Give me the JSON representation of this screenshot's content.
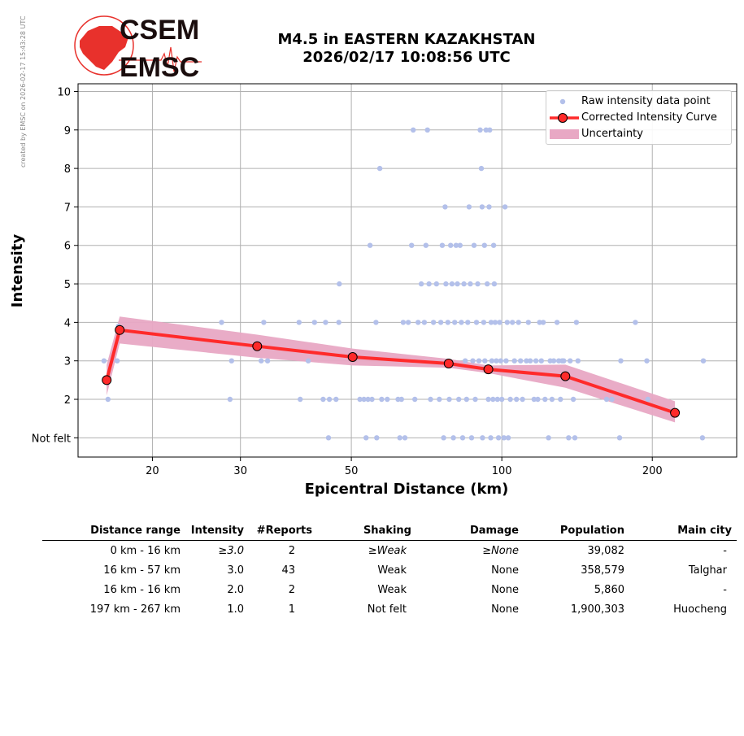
{
  "side_credit": "created by EMSC on 2026-02-17 15:43:28 UTC",
  "logo": {
    "text_top": "CSEM",
    "text_bottom": "EMSC",
    "color_red": "#e8312c",
    "color_dark": "#1a0d0d"
  },
  "title": {
    "line1": "M4.5 in EASTERN KAZAKHSTAN",
    "line2": "2026/02/17 10:08:56 UTC"
  },
  "legend": {
    "raw": "Raw intensity data point",
    "curve": "Corrected Intensity Curve",
    "uncertainty": "Uncertainty"
  },
  "colors": {
    "raw": "#b3c0ea",
    "curve": "#ff2a2a",
    "uncertainty": "#e8a8c4",
    "grid": "#b0b0b0"
  },
  "chart_data": {
    "type": "scatter",
    "xlabel": "Epicentral Distance (km)",
    "ylabel": "Intensity",
    "xscale": "log",
    "xlim": [
      14.2,
      295
    ],
    "ylim": [
      0.5,
      10.2
    ],
    "xticks": [
      20,
      30,
      50,
      100,
      200
    ],
    "yticks": [
      1,
      2,
      3,
      4,
      5,
      6,
      7,
      8,
      9,
      10
    ],
    "ytick_labels": [
      "Not felt",
      "2",
      "3",
      "4",
      "5",
      "6",
      "7",
      "8",
      "9",
      "10"
    ],
    "grid": true,
    "legend_position": "top-right",
    "series": [
      {
        "name": "Raw intensity data point",
        "points": [
          [
            16,
            3
          ],
          [
            16.3,
            2
          ],
          [
            17,
            3
          ],
          [
            17.1,
            3.9
          ],
          [
            27.5,
            4
          ],
          [
            28.8,
            3
          ],
          [
            28.6,
            2
          ],
          [
            33.4,
            4
          ],
          [
            33,
            3
          ],
          [
            34,
            3
          ],
          [
            39.3,
            4
          ],
          [
            39.5,
            2
          ],
          [
            41,
            3
          ],
          [
            42.2,
            4
          ],
          [
            44.4,
            4
          ],
          [
            43.9,
            2
          ],
          [
            45.2,
            2
          ],
          [
            45,
            1
          ],
          [
            46.6,
            2
          ],
          [
            47.3,
            5
          ],
          [
            47.2,
            4
          ],
          [
            52,
            2
          ],
          [
            53,
            2
          ],
          [
            53.5,
            1
          ],
          [
            54,
            2
          ],
          [
            54.5,
            6
          ],
          [
            55,
            2
          ],
          [
            56,
            4
          ],
          [
            56.2,
            1
          ],
          [
            57,
            8
          ],
          [
            57.5,
            2
          ],
          [
            59,
            2
          ],
          [
            62,
            2
          ],
          [
            62.5,
            1
          ],
          [
            63,
            2
          ],
          [
            63.5,
            4
          ],
          [
            64,
            1
          ],
          [
            65,
            4
          ],
          [
            66,
            6
          ],
          [
            66.5,
            9
          ],
          [
            67,
            2
          ],
          [
            68,
            4
          ],
          [
            69,
            5
          ],
          [
            70,
            4
          ],
          [
            70.5,
            6
          ],
          [
            71,
            9
          ],
          [
            71.5,
            5
          ],
          [
            72,
            2
          ],
          [
            73,
            4
          ],
          [
            74,
            5
          ],
          [
            75,
            2
          ],
          [
            75.5,
            4
          ],
          [
            76,
            6
          ],
          [
            76.5,
            1
          ],
          [
            77,
            7
          ],
          [
            77.3,
            5
          ],
          [
            78,
            4
          ],
          [
            78.5,
            2
          ],
          [
            79,
            6
          ],
          [
            79.5,
            5
          ],
          [
            80,
            1
          ],
          [
            80.5,
            4
          ],
          [
            81,
            6
          ],
          [
            81.5,
            5
          ],
          [
            82,
            2
          ],
          [
            82.5,
            6
          ],
          [
            83,
            4
          ],
          [
            83.5,
            1
          ],
          [
            84,
            5
          ],
          [
            84.5,
            3
          ],
          [
            85,
            2
          ],
          [
            85.5,
            4
          ],
          [
            86,
            7
          ],
          [
            86.5,
            5
          ],
          [
            87,
            1
          ],
          [
            87.5,
            3
          ],
          [
            88,
            6
          ],
          [
            88.5,
            2
          ],
          [
            89,
            4
          ],
          [
            89.5,
            5
          ],
          [
            90,
            3
          ],
          [
            90.5,
            9
          ],
          [
            91,
            8
          ],
          [
            91.3,
            7
          ],
          [
            91.5,
            1
          ],
          [
            92,
            4
          ],
          [
            92.3,
            6
          ],
          [
            92.5,
            3
          ],
          [
            93,
            9
          ],
          [
            93.5,
            5
          ],
          [
            94,
            2
          ],
          [
            94.3,
            7
          ],
          [
            94.6,
            9
          ],
          [
            95,
            1
          ],
          [
            95.2,
            4
          ],
          [
            95.5,
            3
          ],
          [
            96,
            2
          ],
          [
            96.3,
            6
          ],
          [
            96.6,
            5
          ],
          [
            97,
            4
          ],
          [
            97.5,
            3
          ],
          [
            98,
            2
          ],
          [
            98.5,
            1
          ],
          [
            99,
            4
          ],
          [
            99.5,
            3
          ],
          [
            100,
            2
          ],
          [
            101,
            1
          ],
          [
            101.5,
            7
          ],
          [
            102,
            3
          ],
          [
            102.5,
            4
          ],
          [
            103,
            1
          ],
          [
            104,
            2
          ],
          [
            105,
            4
          ],
          [
            106,
            3
          ],
          [
            107,
            2
          ],
          [
            108,
            4
          ],
          [
            109,
            3
          ],
          [
            110,
            2
          ],
          [
            112,
            3
          ],
          [
            113,
            4
          ],
          [
            114,
            3
          ],
          [
            116,
            2
          ],
          [
            117,
            3
          ],
          [
            118,
            2
          ],
          [
            119,
            4
          ],
          [
            120,
            3
          ],
          [
            121,
            4
          ],
          [
            122,
            2
          ],
          [
            124,
            1
          ],
          [
            125,
            3
          ],
          [
            126,
            2
          ],
          [
            127,
            3
          ],
          [
            129,
            4
          ],
          [
            130,
            3
          ],
          [
            131,
            2
          ],
          [
            132,
            3
          ],
          [
            133,
            3
          ],
          [
            136,
            1
          ],
          [
            137,
            3
          ],
          [
            139,
            2
          ],
          [
            140,
            1
          ],
          [
            141,
            4
          ],
          [
            142,
            3
          ],
          [
            162,
            2
          ],
          [
            166,
            2
          ],
          [
            172,
            1
          ],
          [
            173,
            3
          ],
          [
            185,
            4
          ],
          [
            195,
            3
          ],
          [
            196,
            2
          ],
          [
            252,
            1
          ],
          [
            253,
            3
          ]
        ]
      },
      {
        "name": "Corrected Intensity Curve",
        "points": [
          [
            16.2,
            2.5
          ],
          [
            17.2,
            3.8
          ],
          [
            32.4,
            3.38
          ],
          [
            50.3,
            3.1
          ],
          [
            78.3,
            2.93
          ],
          [
            94,
            2.78
          ],
          [
            134,
            2.6
          ],
          [
            222,
            1.65
          ]
        ]
      },
      {
        "name": "Uncertainty",
        "upper": [
          [
            16.2,
            2.9
          ],
          [
            17.2,
            4.15
          ],
          [
            32.4,
            3.68
          ],
          [
            50.3,
            3.32
          ],
          [
            78.3,
            3.05
          ],
          [
            94,
            2.88
          ],
          [
            134,
            2.9
          ],
          [
            222,
            1.95
          ]
        ],
        "lower": [
          [
            16.2,
            2.1
          ],
          [
            17.2,
            3.45
          ],
          [
            32.4,
            3.08
          ],
          [
            50.3,
            2.88
          ],
          [
            78.3,
            2.82
          ],
          [
            94,
            2.68
          ],
          [
            134,
            2.3
          ],
          [
            222,
            1.4
          ]
        ]
      }
    ]
  },
  "table": {
    "headers": [
      "Distance range",
      "Intensity",
      "#Reports",
      "Shaking",
      "Damage",
      "Population",
      "Main city"
    ],
    "rows": [
      [
        "0 km -   16 km",
        "≥3.0",
        "2",
        "≥Weak",
        "≥None",
        "39,082",
        "-"
      ],
      [
        "16 km -   57 km",
        "3.0",
        "43",
        "Weak",
        "None",
        "358,579",
        "Talghar"
      ],
      [
        "16 km -   16 km",
        "2.0",
        "2",
        "Weak",
        "None",
        "5,860",
        "-"
      ],
      [
        "197 km -  267 km",
        "1.0",
        "1",
        "Not felt",
        "None",
        "1,900,303",
        "Huocheng"
      ]
    ]
  }
}
